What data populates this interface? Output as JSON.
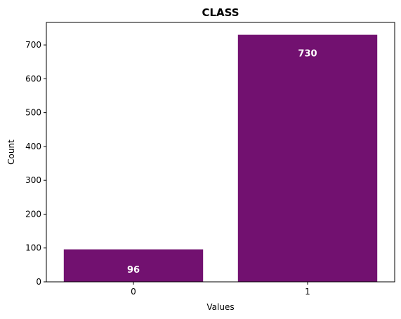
{
  "chart_data": {
    "type": "bar",
    "title": "CLASS",
    "xlabel": "Values",
    "ylabel": "Count",
    "categories": [
      "0",
      "1"
    ],
    "values": [
      96,
      730
    ],
    "data_labels": [
      "96",
      "730"
    ],
    "ylim": [
      0,
      766.5
    ],
    "yticks": [
      0,
      100,
      200,
      300,
      400,
      500,
      600,
      700
    ],
    "ytick_labels": [
      "0",
      "100",
      "200",
      "300",
      "400",
      "500",
      "600",
      "700"
    ],
    "grid": false,
    "legend": "none",
    "bar_color": "#721170"
  }
}
